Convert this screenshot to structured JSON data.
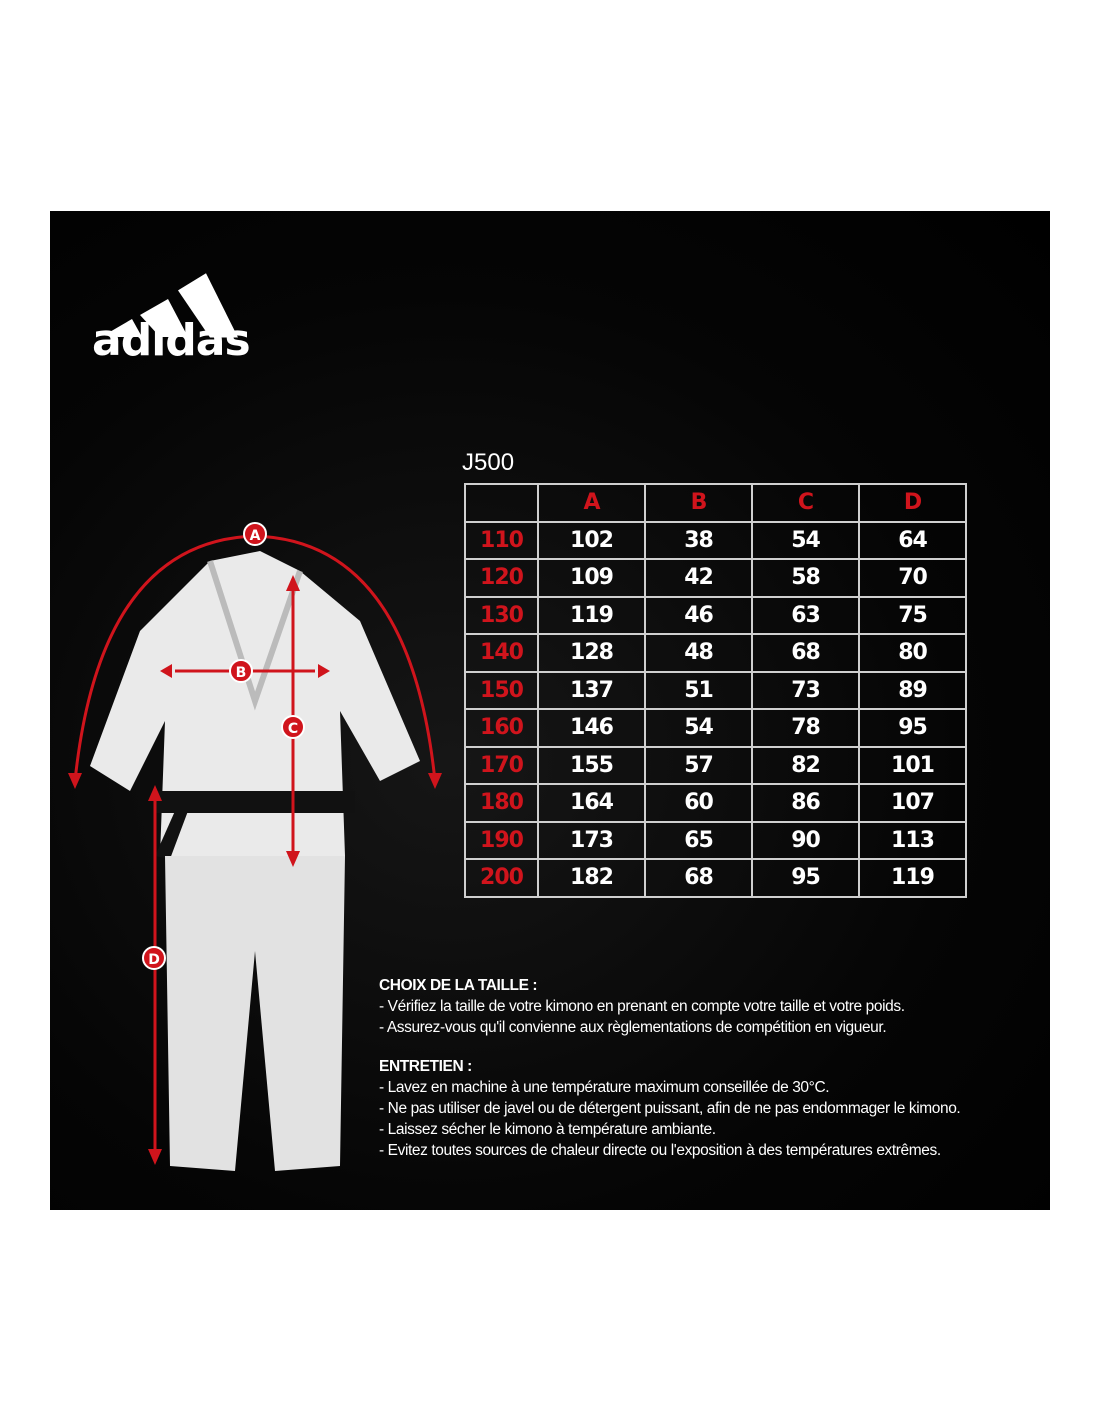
{
  "brand": {
    "logo_text": "adidas"
  },
  "model": "J500",
  "colors": {
    "accent_red": "#d0141c",
    "background": "#000000",
    "text": "#ffffff"
  },
  "illustration": {
    "labels": [
      "A",
      "B",
      "C",
      "D"
    ]
  },
  "chart_data": {
    "type": "table",
    "title": "J500",
    "columns": [
      "",
      "A",
      "B",
      "C",
      "D"
    ],
    "rows": [
      [
        "110",
        "102",
        "38",
        "54",
        "64"
      ],
      [
        "120",
        "109",
        "42",
        "58",
        "70"
      ],
      [
        "130",
        "119",
        "46",
        "63",
        "75"
      ],
      [
        "140",
        "128",
        "48",
        "68",
        "80"
      ],
      [
        "150",
        "137",
        "51",
        "73",
        "89"
      ],
      [
        "160",
        "146",
        "54",
        "78",
        "95"
      ],
      [
        "170",
        "155",
        "57",
        "82",
        "101"
      ],
      [
        "180",
        "164",
        "60",
        "86",
        "107"
      ],
      [
        "190",
        "173",
        "65",
        "90",
        "113"
      ],
      [
        "200",
        "182",
        "68",
        "95",
        "119"
      ]
    ]
  },
  "sizing": {
    "heading": "CHOIX DE LA TAILLE :",
    "lines": [
      "- Vérifiez la taille de votre kimono en prenant en compte votre taille et votre poids.",
      "- Assurez-vous qu'il convienne aux règlementations de compétition en vigueur."
    ]
  },
  "care": {
    "heading": "ENTRETIEN :",
    "lines": [
      "- Lavez en machine à une température maximum conseillée de 30°C.",
      "- Ne pas utiliser de javel ou de détergent puissant, afin de ne pas endommager le kimono.",
      "- Laissez sécher le kimono à température ambiante.",
      "- Evitez toutes sources de chaleur directe ou l'exposition à des températures extrêmes."
    ]
  }
}
